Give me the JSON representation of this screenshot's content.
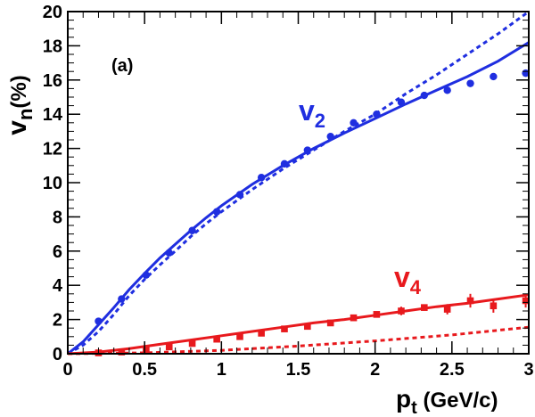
{
  "chart_data": {
    "type": "scatter",
    "panel_label": "(a)",
    "xlabel": {
      "main": "p",
      "sub": "t",
      "rest": " (GeV/c)"
    },
    "ylabel": {
      "main": "v",
      "sub": "n",
      "rest": "(%)"
    },
    "xlim": [
      0,
      3
    ],
    "ylim": [
      0,
      20
    ],
    "x_ticks": [
      0,
      0.5,
      1,
      1.5,
      2,
      2.5,
      3
    ],
    "x_tick_labels": [
      "0",
      "0.5",
      "1",
      "1.5",
      "2",
      "2.5",
      "3"
    ],
    "y_ticks": [
      0,
      2,
      4,
      6,
      8,
      10,
      12,
      14,
      16,
      18,
      20
    ],
    "y_tick_labels": [
      "0",
      "2",
      "4",
      "6",
      "8",
      "10",
      "12",
      "14",
      "16",
      "18",
      "20"
    ],
    "grid": false,
    "legend": "none",
    "series": [
      {
        "name": "v2",
        "label_main": "v",
        "label_sub": "2",
        "color": "#1f2ee0",
        "marker": "circle",
        "points": [
          {
            "x": 0.2,
            "y": 1.9
          },
          {
            "x": 0.35,
            "y": 3.2
          },
          {
            "x": 0.51,
            "y": 4.6
          },
          {
            "x": 0.66,
            "y": 5.9
          },
          {
            "x": 0.81,
            "y": 7.2
          },
          {
            "x": 0.97,
            "y": 8.3
          },
          {
            "x": 1.12,
            "y": 9.3
          },
          {
            "x": 1.26,
            "y": 10.3
          },
          {
            "x": 1.41,
            "y": 11.1
          },
          {
            "x": 1.56,
            "y": 11.9
          },
          {
            "x": 1.71,
            "y": 12.7
          },
          {
            "x": 1.86,
            "y": 13.5
          },
          {
            "x": 2.01,
            "y": 14.0
          },
          {
            "x": 2.17,
            "y": 14.7
          },
          {
            "x": 2.32,
            "y": 15.1
          },
          {
            "x": 2.47,
            "y": 15.4
          },
          {
            "x": 2.62,
            "y": 15.8
          },
          {
            "x": 2.77,
            "y": 16.2
          },
          {
            "x": 2.98,
            "y": 16.4
          }
        ],
        "solid_curve": [
          {
            "x": 0,
            "y": 0
          },
          {
            "x": 0.1,
            "y": 0.7
          },
          {
            "x": 0.2,
            "y": 1.7
          },
          {
            "x": 0.3,
            "y": 2.7
          },
          {
            "x": 0.4,
            "y": 3.75
          },
          {
            "x": 0.5,
            "y": 4.7
          },
          {
            "x": 0.6,
            "y": 5.6
          },
          {
            "x": 0.7,
            "y": 6.4
          },
          {
            "x": 0.8,
            "y": 7.2
          },
          {
            "x": 0.9,
            "y": 7.95
          },
          {
            "x": 1.0,
            "y": 8.65
          },
          {
            "x": 1.2,
            "y": 9.9
          },
          {
            "x": 1.4,
            "y": 11.0
          },
          {
            "x": 1.6,
            "y": 12.0
          },
          {
            "x": 1.8,
            "y": 12.9
          },
          {
            "x": 2.0,
            "y": 13.75
          },
          {
            "x": 2.2,
            "y": 14.6
          },
          {
            "x": 2.4,
            "y": 15.4
          },
          {
            "x": 2.6,
            "y": 16.2
          },
          {
            "x": 2.8,
            "y": 17.1
          },
          {
            "x": 3.0,
            "y": 18.2
          }
        ],
        "dashed_curve": [
          {
            "x": 0,
            "y": 0
          },
          {
            "x": 0.1,
            "y": 0.5
          },
          {
            "x": 0.2,
            "y": 1.3
          },
          {
            "x": 0.3,
            "y": 2.3
          },
          {
            "x": 0.4,
            "y": 3.4
          },
          {
            "x": 0.5,
            "y": 4.35
          },
          {
            "x": 0.6,
            "y": 5.2
          },
          {
            "x": 0.7,
            "y": 6.0
          },
          {
            "x": 0.8,
            "y": 6.85
          },
          {
            "x": 0.9,
            "y": 7.6
          },
          {
            "x": 1.0,
            "y": 8.3
          },
          {
            "x": 1.2,
            "y": 9.6
          },
          {
            "x": 1.4,
            "y": 10.8
          },
          {
            "x": 1.6,
            "y": 11.9
          },
          {
            "x": 1.8,
            "y": 13.0
          },
          {
            "x": 2.0,
            "y": 14.0
          },
          {
            "x": 2.2,
            "y": 15.2
          },
          {
            "x": 2.4,
            "y": 16.3
          },
          {
            "x": 2.6,
            "y": 17.5
          },
          {
            "x": 2.8,
            "y": 18.7
          },
          {
            "x": 3.0,
            "y": 20.0
          }
        ]
      },
      {
        "name": "v4",
        "label_main": "v",
        "label_sub": "4",
        "color": "#e8191d",
        "marker": "square",
        "points": [
          {
            "x": 0.2,
            "y": 0.05
          },
          {
            "x": 0.35,
            "y": 0.1
          },
          {
            "x": 0.51,
            "y": 0.2
          },
          {
            "x": 0.66,
            "y": 0.4
          },
          {
            "x": 0.81,
            "y": 0.6
          },
          {
            "x": 0.97,
            "y": 0.85
          },
          {
            "x": 1.12,
            "y": 1.0
          },
          {
            "x": 1.26,
            "y": 1.2
          },
          {
            "x": 1.41,
            "y": 1.45
          },
          {
            "x": 1.56,
            "y": 1.6
          },
          {
            "x": 1.71,
            "y": 1.8
          },
          {
            "x": 1.86,
            "y": 2.1
          },
          {
            "x": 2.01,
            "y": 2.3
          },
          {
            "x": 2.17,
            "y": 2.5
          },
          {
            "x": 2.32,
            "y": 2.7
          },
          {
            "x": 2.47,
            "y": 2.6
          },
          {
            "x": 2.62,
            "y": 3.1
          },
          {
            "x": 2.77,
            "y": 2.8
          },
          {
            "x": 2.98,
            "y": 3.1
          }
        ],
        "error_bars": [
          {
            "x": 2.17,
            "lo": 2.25,
            "hi": 2.75
          },
          {
            "x": 2.47,
            "lo": 2.3,
            "hi": 2.9
          },
          {
            "x": 2.62,
            "lo": 2.7,
            "hi": 3.5
          },
          {
            "x": 2.77,
            "lo": 2.4,
            "hi": 3.2
          },
          {
            "x": 2.98,
            "lo": 2.7,
            "hi": 3.5
          }
        ],
        "solid_curve": [
          {
            "x": 0,
            "y": 0
          },
          {
            "x": 0.2,
            "y": 0.1
          },
          {
            "x": 0.4,
            "y": 0.3
          },
          {
            "x": 0.6,
            "y": 0.55
          },
          {
            "x": 0.8,
            "y": 0.8
          },
          {
            "x": 1.0,
            "y": 1.05
          },
          {
            "x": 1.2,
            "y": 1.3
          },
          {
            "x": 1.4,
            "y": 1.55
          },
          {
            "x": 1.6,
            "y": 1.8
          },
          {
            "x": 1.8,
            "y": 2.0
          },
          {
            "x": 2.0,
            "y": 2.25
          },
          {
            "x": 2.2,
            "y": 2.5
          },
          {
            "x": 2.4,
            "y": 2.75
          },
          {
            "x": 2.6,
            "y": 2.95
          },
          {
            "x": 2.8,
            "y": 3.2
          },
          {
            "x": 3.0,
            "y": 3.45
          }
        ],
        "dashed_curve": [
          {
            "x": 0,
            "y": 0
          },
          {
            "x": 0.5,
            "y": 0.05
          },
          {
            "x": 1.0,
            "y": 0.2
          },
          {
            "x": 1.5,
            "y": 0.45
          },
          {
            "x": 2.0,
            "y": 0.75
          },
          {
            "x": 2.5,
            "y": 1.1
          },
          {
            "x": 3.0,
            "y": 1.55
          }
        ]
      }
    ]
  }
}
